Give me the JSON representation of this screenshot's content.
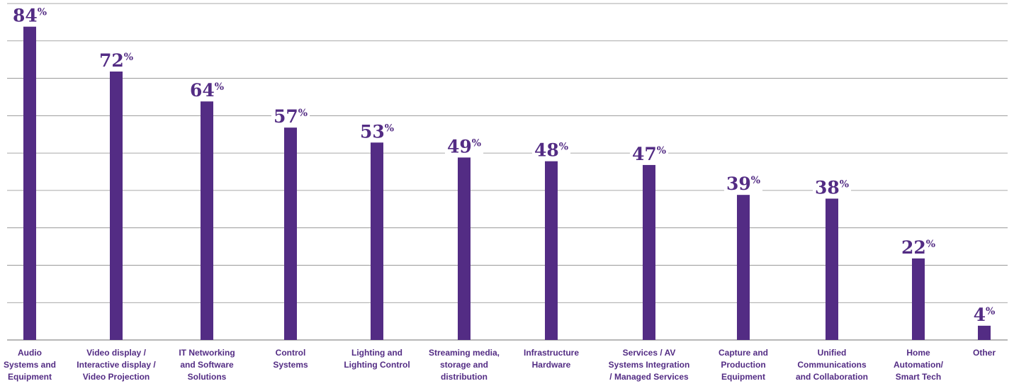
{
  "chart_data": {
    "type": "bar",
    "categories": [
      [
        "Audio",
        "Systems and",
        "Equipment"
      ],
      [
        "Video display /",
        "Interactive display /",
        "Video Projection"
      ],
      [
        "IT Networking",
        "and Software",
        "Solutions"
      ],
      [
        "Control",
        "Systems"
      ],
      [
        "Lighting and",
        "Lighting Control"
      ],
      [
        "Streaming media,",
        "storage and",
        "distribution"
      ],
      [
        "Infrastructure",
        "Hardware"
      ],
      [
        "Services / AV",
        "Systems Integration",
        "/ Managed Services"
      ],
      [
        "Capture and",
        "Production",
        "Equipment"
      ],
      [
        "Unified",
        "Communications",
        "and Collaboration"
      ],
      [
        "Home",
        "Automation/",
        "Smart Tech"
      ],
      [
        "Other"
      ]
    ],
    "values": [
      84,
      72,
      64,
      57,
      53,
      49,
      48,
      47,
      39,
      38,
      22,
      4
    ],
    "value_suffix": "%",
    "ylim": [
      0,
      90
    ],
    "grid": true,
    "colors": {
      "bar": "#532c84",
      "grid": "#8c8c8c",
      "text": "#532c84"
    }
  }
}
